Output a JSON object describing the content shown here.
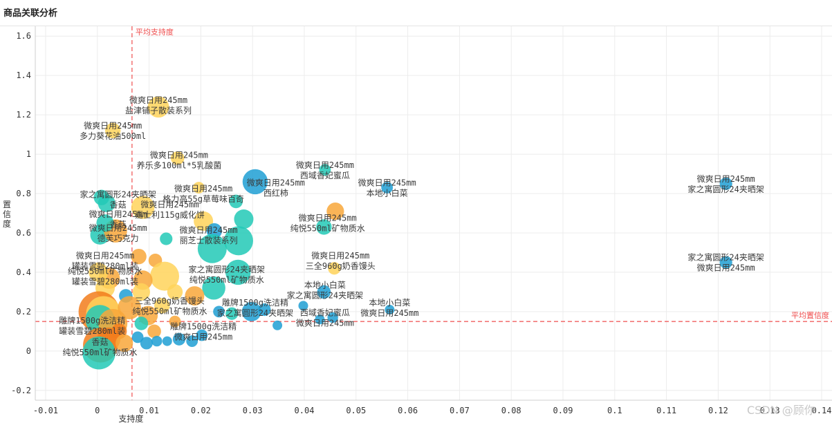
{
  "page": {
    "title": "商品关联分析",
    "watermark": "CSDN @顾你"
  },
  "colors": {
    "palette": [
      "#1f9fd4",
      "#22c9b6",
      "#f8a73a",
      "#ffd45a",
      "#22c9b6",
      "#f27c1c"
    ],
    "ref_line": "#ef4d4d",
    "grid": "#ececec",
    "axis_text": "#333333"
  },
  "chart_data": {
    "type": "scatter",
    "title": "",
    "xlabel": "支持度",
    "ylabel": "置信度",
    "xlim": [
      -0.012,
      0.142
    ],
    "ylim": [
      -0.25,
      1.65
    ],
    "xticks": [
      -0.01,
      0,
      0.01,
      0.02,
      0.03,
      0.04,
      0.05,
      0.06,
      0.07,
      0.08,
      0.09,
      0.1,
      0.11,
      0.12,
      0.13,
      0.14
    ],
    "yticks": [
      -0.2,
      0,
      0.2,
      0.4,
      0.6,
      0.8,
      1,
      1.2,
      1.4,
      1.6
    ],
    "xtick_labels": [
      "-0.01",
      "0",
      "0.01",
      "0.02",
      "0.03",
      "0.04",
      "0.05",
      "0.06",
      "0.07",
      "0.08",
      "0.09",
      "0.1",
      "0.11",
      "0.12",
      "0.13",
      "0.14"
    ],
    "ytick_labels": [
      "-0.2",
      "0",
      "0.2",
      "0.4",
      "0.6",
      "0.8",
      "1",
      "1.2",
      "1.4",
      "1.6"
    ],
    "grid": true,
    "avg_support": 0.0067,
    "avg_confidence": 0.15,
    "avg_support_label": "平均支持度",
    "avg_confidence_label": "平均置信度",
    "points": [
      {
        "x": 0.0118,
        "y": 1.24,
        "size": 2.2,
        "color": 3
      },
      {
        "x": 0.003,
        "y": 1.12,
        "size": 1.6,
        "color": 3
      },
      {
        "x": 0.0155,
        "y": 0.98,
        "size": 1.4,
        "color": 3
      },
      {
        "x": 0.0305,
        "y": 0.86,
        "size": 2.6,
        "color": 0
      },
      {
        "x": 0.044,
        "y": 0.92,
        "size": 1.2,
        "color": 1
      },
      {
        "x": 0.056,
        "y": 0.83,
        "size": 1.2,
        "color": 0
      },
      {
        "x": 0.1215,
        "y": 0.85,
        "size": 1.3,
        "color": 0
      },
      {
        "x": 0.0008,
        "y": 0.78,
        "size": 1.6,
        "color": 1
      },
      {
        "x": 0.0018,
        "y": 0.75,
        "size": 1.8,
        "color": 1
      },
      {
        "x": 0.0088,
        "y": 0.73,
        "size": 2.4,
        "color": 3
      },
      {
        "x": 0.0196,
        "y": 0.83,
        "size": 1.2,
        "color": 3
      },
      {
        "x": 0.0268,
        "y": 0.76,
        "size": 1.4,
        "color": 1
      },
      {
        "x": 0.0205,
        "y": 0.66,
        "size": 2.0,
        "color": 3
      },
      {
        "x": 0.046,
        "y": 0.71,
        "size": 1.8,
        "color": 2
      },
      {
        "x": 0.0438,
        "y": 0.63,
        "size": 1.6,
        "color": 1
      },
      {
        "x": 0.0283,
        "y": 0.67,
        "size": 2.0,
        "color": 1
      },
      {
        "x": 0.0226,
        "y": 0.61,
        "size": 1.6,
        "color": 0
      },
      {
        "x": 0.0273,
        "y": 0.56,
        "size": 3.0,
        "color": 1
      },
      {
        "x": 0.0222,
        "y": 0.52,
        "size": 3.0,
        "color": 1
      },
      {
        "x": 0.0133,
        "y": 0.57,
        "size": 1.3,
        "color": 1
      },
      {
        "x": 0.0005,
        "y": 0.59,
        "size": 2.0,
        "color": 1
      },
      {
        "x": 0.0035,
        "y": 0.61,
        "size": 2.4,
        "color": 2
      },
      {
        "x": 0.0015,
        "y": 0.65,
        "size": 1.8,
        "color": 1
      },
      {
        "x": 0.008,
        "y": 0.48,
        "size": 1.6,
        "color": 2
      },
      {
        "x": 0.0112,
        "y": 0.46,
        "size": 1.4,
        "color": 2
      },
      {
        "x": 0.013,
        "y": 0.38,
        "size": 3.0,
        "color": 3
      },
      {
        "x": 0.0088,
        "y": 0.36,
        "size": 2.0,
        "color": 2
      },
      {
        "x": 0.0023,
        "y": 0.37,
        "size": 2.2,
        "color": 2
      },
      {
        "x": 0.0002,
        "y": 0.4,
        "size": 2.0,
        "color": 3
      },
      {
        "x": 0.0272,
        "y": 0.4,
        "size": 2.6,
        "color": 1
      },
      {
        "x": 0.0225,
        "y": 0.32,
        "size": 2.4,
        "color": 1
      },
      {
        "x": 0.0188,
        "y": 0.28,
        "size": 2.0,
        "color": 2
      },
      {
        "x": 0.015,
        "y": 0.3,
        "size": 1.6,
        "color": 3
      },
      {
        "x": 0.0085,
        "y": 0.3,
        "size": 1.8,
        "color": 3
      },
      {
        "x": 0.0055,
        "y": 0.28,
        "size": 1.4,
        "color": 0
      },
      {
        "x": 0.0015,
        "y": 0.32,
        "size": 2.0,
        "color": 3
      },
      {
        "x": 0.0003,
        "y": 0.2,
        "size": 4.2,
        "color": 5
      },
      {
        "x": 0.0012,
        "y": 0.19,
        "size": 3.6,
        "color": 3
      },
      {
        "x": 0.0005,
        "y": 0.16,
        "size": 3.0,
        "color": 1
      },
      {
        "x": 0.003,
        "y": 0.14,
        "size": 3.0,
        "color": 2
      },
      {
        "x": 0.0062,
        "y": 0.22,
        "size": 2.4,
        "color": 2
      },
      {
        "x": 0.0098,
        "y": 0.18,
        "size": 2.0,
        "color": 2
      },
      {
        "x": 0.0125,
        "y": 0.23,
        "size": 1.6,
        "color": 3
      },
      {
        "x": 0.015,
        "y": 0.15,
        "size": 1.2,
        "color": 2
      },
      {
        "x": 0.0085,
        "y": 0.14,
        "size": 1.4,
        "color": 1
      },
      {
        "x": 0.011,
        "y": 0.1,
        "size": 1.4,
        "color": 2
      },
      {
        "x": 0.0042,
        "y": 0.1,
        "size": 1.6,
        "color": 5
      },
      {
        "x": 0.0022,
        "y": 0.06,
        "size": 2.4,
        "color": 5
      },
      {
        "x": 0.0006,
        "y": 0.03,
        "size": 3.6,
        "color": 5
      },
      {
        "x": 0.0003,
        "y": -0.01,
        "size": 3.4,
        "color": 1
      },
      {
        "x": 0.0052,
        "y": 0.04,
        "size": 1.8,
        "color": 2
      },
      {
        "x": 0.0078,
        "y": 0.07,
        "size": 1.2,
        "color": 0
      },
      {
        "x": 0.0095,
        "y": 0.04,
        "size": 1.3,
        "color": 0
      },
      {
        "x": 0.0115,
        "y": 0.05,
        "size": 1.1,
        "color": 0
      },
      {
        "x": 0.0135,
        "y": 0.05,
        "size": 1.0,
        "color": 0
      },
      {
        "x": 0.0158,
        "y": 0.06,
        "size": 1.3,
        "color": 0
      },
      {
        "x": 0.0183,
        "y": 0.05,
        "size": 1.2,
        "color": 0
      },
      {
        "x": 0.0202,
        "y": 0.08,
        "size": 1.2,
        "color": 0
      },
      {
        "x": 0.0235,
        "y": 0.2,
        "size": 1.2,
        "color": 0
      },
      {
        "x": 0.026,
        "y": 0.19,
        "size": 1.3,
        "color": 1
      },
      {
        "x": 0.0298,
        "y": 0.2,
        "size": 2.0,
        "color": 0
      },
      {
        "x": 0.0323,
        "y": 0.21,
        "size": 1.3,
        "color": 0
      },
      {
        "x": 0.0348,
        "y": 0.13,
        "size": 1.0,
        "color": 0
      },
      {
        "x": 0.0398,
        "y": 0.23,
        "size": 1.0,
        "color": 0
      },
      {
        "x": 0.0438,
        "y": 0.3,
        "size": 1.4,
        "color": 0
      },
      {
        "x": 0.0458,
        "y": 0.42,
        "size": 1.3,
        "color": 3
      },
      {
        "x": 0.0455,
        "y": 0.17,
        "size": 1.1,
        "color": 0
      },
      {
        "x": 0.043,
        "y": 0.16,
        "size": 1.0,
        "color": 0
      },
      {
        "x": 0.0565,
        "y": 0.21,
        "size": 1.0,
        "color": 0
      },
      {
        "x": 0.1215,
        "y": 0.45,
        "size": 1.3,
        "color": 0
      }
    ],
    "annotations": [
      {
        "x": 0.0118,
        "y": 1.25,
        "lines": [
          "微爽日用245mm",
          "盐津铺子散装系列"
        ]
      },
      {
        "x": 0.003,
        "y": 1.12,
        "lines": [
          "微爽日用245mm",
          "多力葵花油500ml"
        ]
      },
      {
        "x": 0.0158,
        "y": 0.97,
        "lines": [
          "微爽日用245mm",
          "养乐多100ml*5乳酸菌"
        ]
      },
      {
        "x": 0.044,
        "y": 0.92,
        "lines": [
          "微爽日用245mm",
          "西域香妃蜜瓜"
        ]
      },
      {
        "x": 0.056,
        "y": 0.83,
        "lines": [
          "微爽日用245mm",
          "本地小白菜"
        ]
      },
      {
        "x": 0.1215,
        "y": 0.85,
        "lines": [
          "微爽日用245mm",
          "家之寓圆形24夹晒架"
        ]
      },
      {
        "x": 0.0345,
        "y": 0.83,
        "lines": [
          "微爽日用245mm",
          "西红柿"
        ]
      },
      {
        "x": 0.0205,
        "y": 0.8,
        "lines": [
          "微爽日用245mm",
          "格力高55g草莓味百奇"
        ]
      },
      {
        "x": 0.014,
        "y": 0.72,
        "lines": [
          "微爽日用245mm",
          "嘉士利115g威化饼"
        ]
      },
      {
        "x": 0.004,
        "y": 0.77,
        "lines": [
          "家之寓圆形24夹晒架",
          "香菇"
        ]
      },
      {
        "x": 0.004,
        "y": 0.67,
        "lines": [
          "微爽日用245mm",
          "香菇"
        ]
      },
      {
        "x": 0.0445,
        "y": 0.65,
        "lines": [
          "微爽日用245mm",
          "纯悦550ml矿物质水"
        ]
      },
      {
        "x": 0.004,
        "y": 0.6,
        "lines": [
          "微爽日用245mm",
          "德芙巧克力"
        ]
      },
      {
        "x": 0.0215,
        "y": 0.59,
        "lines": [
          "微爽日用245mm",
          "丽芝士散装系列"
        ]
      },
      {
        "x": 0.047,
        "y": 0.46,
        "lines": [
          "微爽日用245mm",
          "三全960g奶香馒头"
        ]
      },
      {
        "x": 0.1215,
        "y": 0.45,
        "lines": [
          "家之寓圆形24夹晒架",
          "微爽日用245mm"
        ]
      },
      {
        "x": 0.0015,
        "y": 0.46,
        "lines": [
          "微爽日用245mm",
          "罐装雪碧280ml装"
        ]
      },
      {
        "x": 0.0015,
        "y": 0.38,
        "lines": [
          "纯悦550ml矿物质水",
          "罐装雪碧280ml装"
        ]
      },
      {
        "x": 0.025,
        "y": 0.39,
        "lines": [
          "家之寓圆形24夹晒架",
          "纯悦550ml矿物质水"
        ]
      },
      {
        "x": 0.044,
        "y": 0.31,
        "lines": [
          "本地小白菜",
          "家之寓圆形24夹晒架"
        ]
      },
      {
        "x": 0.014,
        "y": 0.23,
        "lines": [
          "三全960g奶香馒头",
          "纯悦550ml矿物质水"
        ]
      },
      {
        "x": 0.0305,
        "y": 0.22,
        "lines": [
          "雕牌1500g洗洁精",
          "家之寓圆形24夹晒架"
        ]
      },
      {
        "x": 0.0565,
        "y": 0.22,
        "lines": [
          "本地小白菜",
          "微爽日用245mm"
        ]
      },
      {
        "x": 0.044,
        "y": 0.17,
        "lines": [
          "西域香妃蜜瓜",
          "微爽日用245mm"
        ]
      },
      {
        "x": -0.001,
        "y": 0.13,
        "lines": [
          "雕牌1500g洗洁精",
          "罐装雪碧280ml装"
        ]
      },
      {
        "x": 0.0205,
        "y": 0.1,
        "lines": [
          "雕牌1500g洗洁精",
          "微爽日用245mm"
        ]
      },
      {
        "x": 0.0005,
        "y": 0.02,
        "lines": [
          "香菇",
          "纯悦550ml矿物质水"
        ]
      }
    ]
  }
}
